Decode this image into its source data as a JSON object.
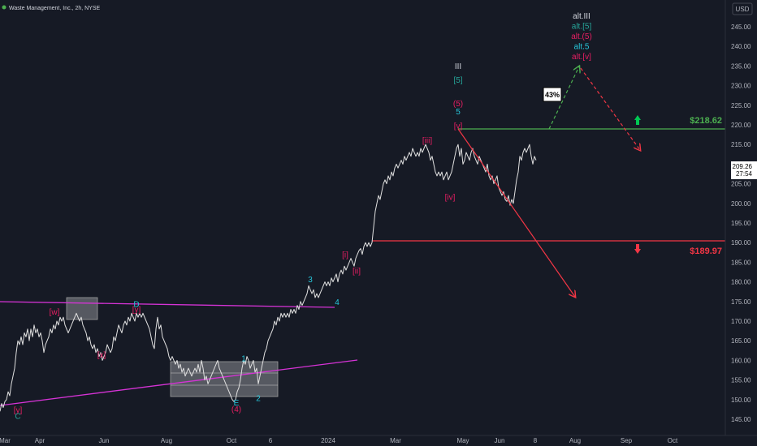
{
  "header": {
    "title": "Waste Management, Inc., 2h, NYSE",
    "currency": "USD"
  },
  "chart_data": {
    "type": "line",
    "title": "Waste Management, Inc., 2h, NYSE",
    "ylabel": "USD",
    "ylim": [
      142,
      248
    ],
    "y_ticks": [
      145,
      150,
      155,
      160,
      165,
      170,
      175,
      180,
      185,
      190,
      195,
      200,
      205,
      210,
      215,
      220,
      225,
      230,
      235,
      240,
      245
    ],
    "x_tick_labels": [
      "Mar",
      "Apr",
      "Jun",
      "Aug",
      "Oct",
      "6",
      "2024",
      "Mar",
      "May",
      "Jun",
      "8",
      "Aug",
      "Sep",
      "Oct"
    ],
    "current_price": "209.26",
    "countdown": "27:54",
    "levels": [
      {
        "name": "resistance",
        "value": 218.62,
        "label": "$218.62",
        "color": "#4caf50"
      },
      {
        "name": "support",
        "value": 189.97,
        "label": "$189.97",
        "color": "#f23645"
      }
    ],
    "probability_label": "43%",
    "price_series": [
      [
        0,
        147
      ],
      [
        2,
        149
      ],
      [
        4,
        148
      ],
      [
        6,
        149.5
      ],
      [
        8,
        150
      ],
      [
        10,
        152
      ],
      [
        12,
        151
      ],
      [
        14,
        154
      ],
      [
        16,
        156
      ],
      [
        18,
        158
      ],
      [
        20,
        162
      ],
      [
        22,
        165
      ],
      [
        24,
        164
      ],
      [
        26,
        166
      ],
      [
        28,
        164
      ],
      [
        30,
        167
      ],
      [
        32,
        166
      ],
      [
        34,
        168
      ],
      [
        36,
        165
      ],
      [
        38,
        168
      ],
      [
        40,
        166
      ],
      [
        42,
        169
      ],
      [
        44,
        167
      ],
      [
        46,
        168
      ],
      [
        48,
        166
      ],
      [
        50,
        167
      ],
      [
        52,
        165
      ],
      [
        54,
        162
      ],
      [
        56,
        164
      ],
      [
        58,
        165
      ],
      [
        60,
        166
      ],
      [
        62,
        168
      ],
      [
        64,
        167
      ],
      [
        66,
        169
      ],
      [
        68,
        168
      ],
      [
        70,
        170
      ],
      [
        72,
        169
      ],
      [
        74,
        171
      ],
      [
        76,
        170
      ],
      [
        78,
        171
      ],
      [
        80,
        169
      ],
      [
        82,
        168
      ],
      [
        84,
        167
      ],
      [
        86,
        168
      ],
      [
        88,
        169
      ],
      [
        90,
        170
      ],
      [
        92,
        171
      ],
      [
        94,
        172
      ],
      [
        96,
        171
      ],
      [
        98,
        170
      ],
      [
        100,
        171
      ],
      [
        102,
        169
      ],
      [
        104,
        168
      ],
      [
        106,
        167
      ],
      [
        108,
        165
      ],
      [
        110,
        166
      ],
      [
        112,
        164
      ],
      [
        114,
        163
      ],
      [
        116,
        164
      ],
      [
        118,
        162
      ],
      [
        120,
        163
      ],
      [
        122,
        161
      ],
      [
        124,
        162
      ],
      [
        126,
        160
      ],
      [
        128,
        161
      ],
      [
        130,
        162
      ],
      [
        132,
        164
      ],
      [
        134,
        163
      ],
      [
        136,
        162
      ],
      [
        138,
        163
      ],
      [
        140,
        166
      ],
      [
        142,
        165
      ],
      [
        144,
        167
      ],
      [
        146,
        169
      ],
      [
        148,
        168
      ],
      [
        150,
        167
      ],
      [
        152,
        169
      ],
      [
        154,
        170
      ],
      [
        156,
        169
      ],
      [
        158,
        171
      ],
      [
        160,
        170
      ],
      [
        162,
        172
      ],
      [
        164,
        171
      ],
      [
        166,
        170
      ],
      [
        168,
        172
      ],
      [
        170,
        171
      ],
      [
        172,
        172
      ],
      [
        174,
        171
      ],
      [
        176,
        172
      ],
      [
        178,
        171
      ],
      [
        180,
        170
      ],
      [
        182,
        169
      ],
      [
        184,
        168
      ],
      [
        186,
        166
      ],
      [
        188,
        164
      ],
      [
        190,
        163
      ],
      [
        192,
        168
      ],
      [
        194,
        171
      ],
      [
        196,
        168
      ],
      [
        198,
        169
      ],
      [
        200,
        166
      ],
      [
        202,
        165
      ],
      [
        204,
        164
      ],
      [
        206,
        163
      ],
      [
        208,
        161
      ],
      [
        210,
        160
      ],
      [
        212,
        161
      ],
      [
        214,
        160
      ],
      [
        216,
        159
      ],
      [
        218,
        160
      ],
      [
        220,
        158
      ],
      [
        222,
        159
      ],
      [
        224,
        157
      ],
      [
        226,
        158
      ],
      [
        228,
        156
      ],
      [
        230,
        157
      ],
      [
        232,
        158
      ],
      [
        234,
        157
      ],
      [
        236,
        156
      ],
      [
        238,
        157
      ],
      [
        240,
        158
      ],
      [
        242,
        157
      ],
      [
        244,
        159
      ],
      [
        246,
        157
      ],
      [
        248,
        160
      ],
      [
        250,
        158
      ],
      [
        252,
        155
      ],
      [
        254,
        156
      ],
      [
        256,
        154
      ],
      [
        258,
        155
      ],
      [
        260,
        156
      ],
      [
        262,
        157
      ],
      [
        264,
        158
      ],
      [
        266,
        159
      ],
      [
        268,
        160
      ],
      [
        270,
        158
      ],
      [
        272,
        157
      ],
      [
        274,
        156
      ],
      [
        276,
        155
      ],
      [
        278,
        154
      ],
      [
        280,
        153
      ],
      [
        282,
        152
      ],
      [
        284,
        151
      ],
      [
        286,
        150
      ],
      [
        288,
        149.5
      ],
      [
        290,
        150
      ],
      [
        292,
        152
      ],
      [
        294,
        153
      ],
      [
        296,
        155
      ],
      [
        298,
        158
      ],
      [
        300,
        160
      ],
      [
        302,
        159
      ],
      [
        304,
        161
      ],
      [
        306,
        160
      ],
      [
        308,
        158
      ],
      [
        310,
        159
      ],
      [
        312,
        160
      ],
      [
        314,
        157
      ],
      [
        316,
        158
      ],
      [
        318,
        154
      ],
      [
        320,
        156
      ],
      [
        322,
        158
      ],
      [
        324,
        160
      ],
      [
        326,
        162
      ],
      [
        328,
        163
      ],
      [
        330,
        165
      ],
      [
        332,
        166
      ],
      [
        334,
        167
      ],
      [
        336,
        168
      ],
      [
        338,
        170
      ],
      [
        340,
        169
      ],
      [
        342,
        171
      ],
      [
        344,
        170
      ],
      [
        346,
        172
      ],
      [
        348,
        171
      ],
      [
        350,
        172
      ],
      [
        352,
        171
      ],
      [
        354,
        172
      ],
      [
        356,
        171
      ],
      [
        358,
        173
      ],
      [
        360,
        172
      ],
      [
        362,
        173
      ],
      [
        364,
        172
      ],
      [
        366,
        174
      ],
      [
        368,
        173
      ],
      [
        370,
        175
      ],
      [
        372,
        174
      ],
      [
        374,
        175
      ],
      [
        376,
        176
      ],
      [
        378,
        177
      ],
      [
        380,
        179
      ],
      [
        382,
        178
      ],
      [
        384,
        177
      ],
      [
        386,
        178
      ],
      [
        388,
        176
      ],
      [
        390,
        177
      ],
      [
        392,
        176
      ],
      [
        394,
        177
      ],
      [
        396,
        178
      ],
      [
        398,
        179
      ],
      [
        400,
        180
      ],
      [
        402,
        179
      ],
      [
        404,
        180
      ],
      [
        406,
        179
      ],
      [
        408,
        181
      ],
      [
        410,
        180
      ],
      [
        412,
        181
      ],
      [
        414,
        182
      ],
      [
        416,
        180
      ],
      [
        418,
        182
      ],
      [
        420,
        183
      ],
      [
        422,
        182
      ],
      [
        424,
        184
      ],
      [
        426,
        183
      ],
      [
        428,
        184
      ],
      [
        430,
        185
      ],
      [
        432,
        186
      ],
      [
        434,
        185
      ],
      [
        436,
        184
      ],
      [
        438,
        186
      ],
      [
        440,
        187
      ],
      [
        442,
        188
      ],
      [
        444,
        188.5
      ],
      [
        446,
        187
      ],
      [
        448,
        189
      ],
      [
        450,
        190
      ],
      [
        452,
        189
      ],
      [
        454,
        190
      ],
      [
        456,
        189
      ],
      [
        458,
        190
      ],
      [
        460,
        194
      ],
      [
        462,
        198
      ],
      [
        464,
        200
      ],
      [
        466,
        202
      ],
      [
        468,
        201
      ],
      [
        470,
        203
      ],
      [
        472,
        205
      ],
      [
        474,
        206
      ],
      [
        476,
        205
      ],
      [
        478,
        207
      ],
      [
        480,
        206
      ],
      [
        482,
        208
      ],
      [
        484,
        207
      ],
      [
        486,
        209
      ],
      [
        488,
        210
      ],
      [
        490,
        209
      ],
      [
        492,
        210
      ],
      [
        494,
        211
      ],
      [
        496,
        210
      ],
      [
        498,
        212
      ],
      [
        500,
        211
      ],
      [
        502,
        212
      ],
      [
        504,
        213
      ],
      [
        506,
        212
      ],
      [
        508,
        214
      ],
      [
        510,
        213
      ],
      [
        512,
        212
      ],
      [
        514,
        213
      ],
      [
        516,
        212
      ],
      [
        518,
        214
      ],
      [
        520,
        213
      ],
      [
        522,
        214
      ],
      [
        524,
        215
      ],
      [
        526,
        214
      ],
      [
        528,
        213
      ],
      [
        530,
        211
      ],
      [
        532,
        212
      ],
      [
        534,
        210
      ],
      [
        536,
        208
      ],
      [
        538,
        207
      ],
      [
        540,
        208
      ],
      [
        542,
        207
      ],
      [
        544,
        208
      ],
      [
        546,
        206
      ],
      [
        548,
        207
      ],
      [
        550,
        208
      ],
      [
        552,
        206
      ],
      [
        554,
        207
      ],
      [
        556,
        208
      ],
      [
        558,
        210
      ],
      [
        560,
        212
      ],
      [
        562,
        214
      ],
      [
        564,
        215
      ],
      [
        566,
        212
      ],
      [
        568,
        214
      ],
      [
        570,
        210
      ],
      [
        572,
        211
      ],
      [
        574,
        213
      ],
      [
        576,
        212
      ],
      [
        578,
        211
      ],
      [
        580,
        213
      ],
      [
        582,
        214
      ],
      [
        584,
        212
      ],
      [
        586,
        211
      ],
      [
        588,
        210
      ],
      [
        590,
        212
      ],
      [
        592,
        211
      ],
      [
        594,
        210
      ],
      [
        596,
        209
      ],
      [
        598,
        208
      ],
      [
        600,
        210
      ],
      [
        602,
        207
      ],
      [
        604,
        206
      ],
      [
        606,
        207
      ],
      [
        608,
        205
      ],
      [
        610,
        206
      ],
      [
        612,
        207
      ],
      [
        614,
        204
      ],
      [
        616,
        203
      ],
      [
        618,
        202
      ],
      [
        620,
        203
      ],
      [
        622,
        201
      ],
      [
        624,
        200.5
      ],
      [
        626,
        202
      ],
      [
        628,
        199.5
      ],
      [
        630,
        201
      ],
      [
        632,
        200
      ],
      [
        634,
        203
      ],
      [
        636,
        206
      ],
      [
        638,
        208
      ],
      [
        640,
        212
      ],
      [
        642,
        211
      ],
      [
        644,
        213
      ],
      [
        646,
        214
      ],
      [
        648,
        213
      ],
      [
        650,
        214
      ],
      [
        652,
        215
      ],
      [
        654,
        212
      ],
      [
        656,
        210
      ],
      [
        658,
        212
      ],
      [
        660,
        211
      ]
    ],
    "wave_labels": [
      {
        "text": "[y]",
        "color": "#e91e63",
        "price": 147.5,
        "x": 22
      },
      {
        "text": "C",
        "color": "#26a69a",
        "price": 145.9,
        "x": 22
      },
      {
        "text": "[w]",
        "color": "#e91e63",
        "price": 172.5,
        "x": 67
      },
      {
        "text": "[x]",
        "color": "#e91e63",
        "price": 161.5,
        "x": 125
      },
      {
        "text": "D",
        "color": "#26c6da",
        "price": 174.4,
        "x": 168
      },
      {
        "text": "[y]",
        "color": "#e91e63",
        "price": 173.1,
        "x": 168
      },
      {
        "text": "1",
        "color": "#26c6da",
        "price": 160.6,
        "x": 300
      },
      {
        "text": "E",
        "color": "#26c6da",
        "price": 149.3,
        "x": 291
      },
      {
        "text": "(4)",
        "color": "#e91e63",
        "price": 147.7,
        "x": 291
      },
      {
        "text": "2",
        "color": "#26c6da",
        "price": 150.5,
        "x": 318
      },
      {
        "text": "3",
        "color": "#26c6da",
        "price": 180.7,
        "x": 382
      },
      {
        "text": "4",
        "color": "#26c6da",
        "price": 175.0,
        "x": 415
      },
      {
        "text": "[i]",
        "color": "#e91e63",
        "price": 187.0,
        "x": 425
      },
      {
        "text": "[ii]",
        "color": "#e91e63",
        "price": 182.9,
        "x": 439
      },
      {
        "text": "[iii]",
        "color": "#e91e63",
        "price": 216.2,
        "x": 526
      },
      {
        "text": "[iv]",
        "color": "#e91e63",
        "price": 201.7,
        "x": 554
      },
      {
        "text": "III",
        "color": "#d1d4dc",
        "price": 235.1,
        "x": 564
      },
      {
        "text": "[5]",
        "color": "#26a69a",
        "price": 231.6,
        "x": 564
      },
      {
        "text": "(5)",
        "color": "#e91e63",
        "price": 225.6,
        "x": 564
      },
      {
        "text": "5",
        "color": "#26c6da",
        "price": 223.5,
        "x": 564
      },
      {
        "text": "[v]",
        "color": "#e91e63",
        "price": 219.9,
        "x": 564
      }
    ],
    "alt_labels": [
      {
        "text": "alt.III",
        "color": "#d1d4dc"
      },
      {
        "text": "alt.[5]",
        "color": "#26a69a"
      },
      {
        "text": "alt.(5)",
        "color": "#e91e63"
      },
      {
        "text": "alt.5",
        "color": "#26c6da"
      },
      {
        "text": "alt.[v]",
        "color": "#e91e63"
      }
    ]
  }
}
